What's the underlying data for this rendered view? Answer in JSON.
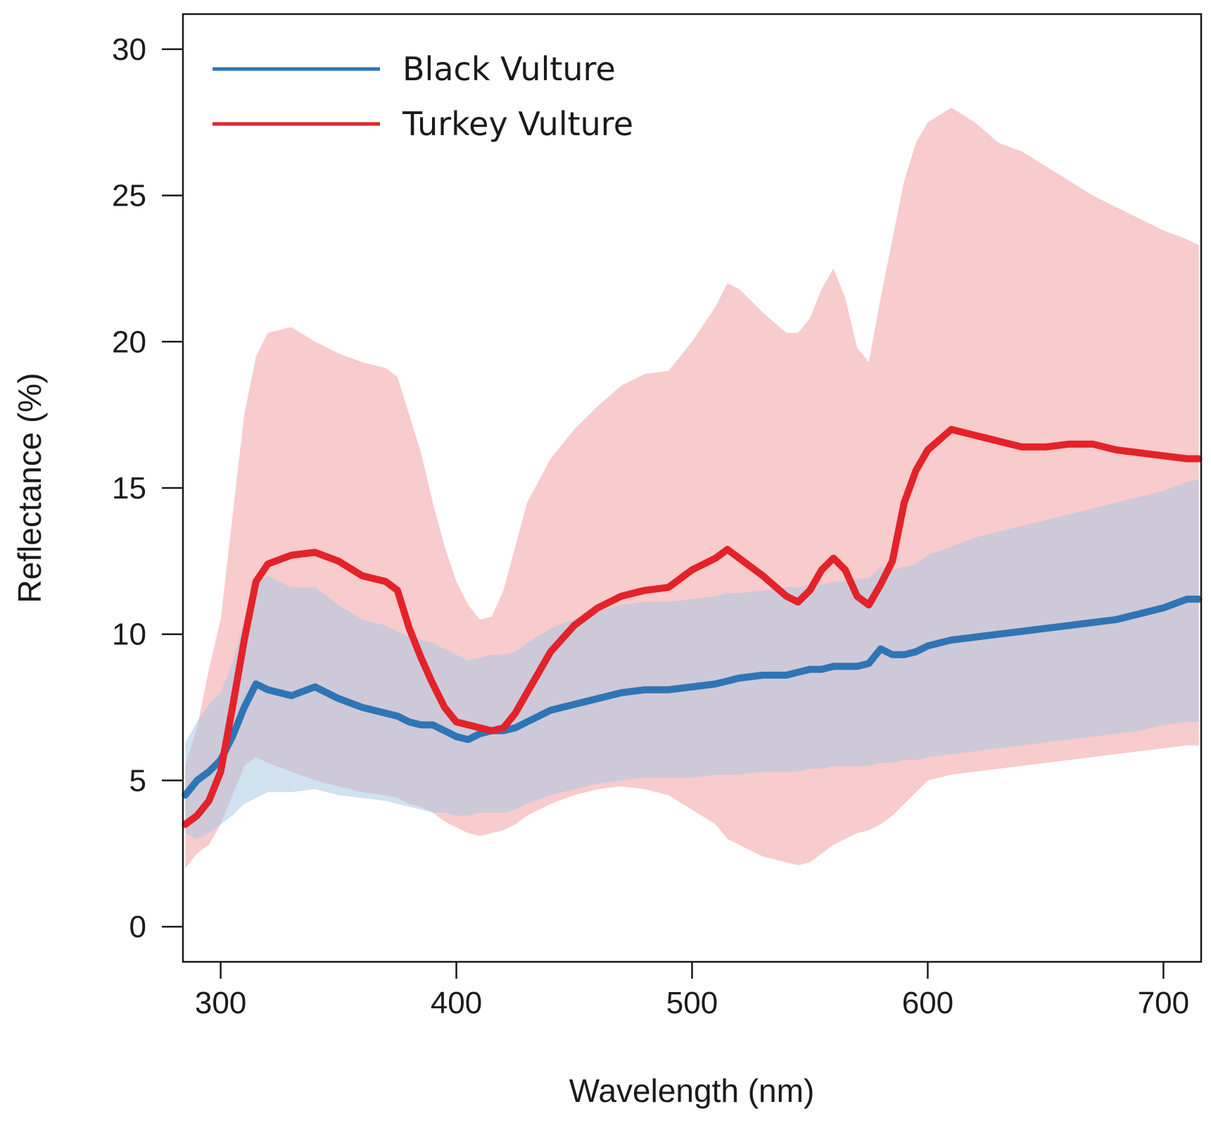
{
  "chart_data": {
    "type": "line",
    "title": "",
    "xlabel": "Wavelength (nm)",
    "ylabel": "Reflectance (%)",
    "xlim": [
      284,
      716
    ],
    "ylim": [
      -1.2,
      31.2
    ],
    "xticks": [
      300,
      400,
      500,
      600,
      700
    ],
    "yticks": [
      0,
      5,
      10,
      15,
      20,
      25,
      30
    ],
    "grid": false,
    "legend_position": "top-left",
    "x": [
      285,
      290,
      295,
      300,
      305,
      310,
      315,
      320,
      330,
      340,
      350,
      360,
      370,
      375,
      380,
      385,
      390,
      395,
      400,
      405,
      410,
      415,
      420,
      425,
      430,
      440,
      450,
      460,
      470,
      480,
      490,
      500,
      510,
      515,
      520,
      530,
      540,
      545,
      550,
      555,
      560,
      565,
      570,
      575,
      580,
      585,
      590,
      595,
      600,
      610,
      620,
      630,
      640,
      650,
      660,
      670,
      680,
      690,
      700,
      710,
      715
    ],
    "series": [
      {
        "name": "Black Vulture",
        "color": "#2e75b6",
        "band_color": "#a9c8e2",
        "values": [
          4.5,
          5.0,
          5.3,
          5.7,
          6.5,
          7.5,
          8.3,
          8.1,
          7.9,
          8.2,
          7.8,
          7.5,
          7.3,
          7.2,
          7.0,
          6.9,
          6.9,
          6.7,
          6.5,
          6.4,
          6.6,
          6.7,
          6.7,
          6.8,
          7.0,
          7.4,
          7.6,
          7.8,
          8.0,
          8.1,
          8.1,
          8.2,
          8.3,
          8.4,
          8.5,
          8.6,
          8.6,
          8.7,
          8.8,
          8.8,
          8.9,
          8.9,
          8.9,
          9.0,
          9.5,
          9.3,
          9.3,
          9.4,
          9.6,
          9.8,
          9.9,
          10.0,
          10.1,
          10.2,
          10.3,
          10.4,
          10.5,
          10.7,
          10.9,
          11.2,
          11.2
        ],
        "band_lower": [
          3.2,
          3.0,
          3.2,
          3.5,
          3.8,
          4.2,
          4.4,
          4.6,
          4.6,
          4.7,
          4.5,
          4.4,
          4.3,
          4.2,
          4.1,
          4.0,
          3.9,
          3.9,
          3.8,
          3.8,
          3.9,
          3.9,
          3.9,
          4.0,
          4.2,
          4.5,
          4.7,
          4.9,
          5.0,
          5.1,
          5.1,
          5.1,
          5.2,
          5.2,
          5.2,
          5.3,
          5.3,
          5.3,
          5.4,
          5.4,
          5.5,
          5.5,
          5.5,
          5.5,
          5.6,
          5.6,
          5.7,
          5.7,
          5.8,
          5.9,
          6.0,
          6.1,
          6.2,
          6.3,
          6.4,
          6.5,
          6.6,
          6.7,
          6.9,
          7.0,
          7.0
        ],
        "band_upper": [
          6.3,
          7.0,
          7.6,
          8.0,
          9.0,
          10.5,
          11.8,
          12.0,
          11.6,
          11.6,
          11.0,
          10.5,
          10.3,
          10.1,
          9.9,
          9.8,
          9.7,
          9.5,
          9.3,
          9.1,
          9.2,
          9.3,
          9.3,
          9.4,
          9.7,
          10.2,
          10.5,
          10.8,
          11.0,
          11.1,
          11.1,
          11.2,
          11.3,
          11.4,
          11.4,
          11.5,
          11.6,
          11.6,
          11.7,
          11.7,
          11.8,
          11.8,
          11.9,
          11.9,
          12.3,
          12.2,
          12.3,
          12.4,
          12.7,
          13.0,
          13.3,
          13.5,
          13.7,
          13.9,
          14.1,
          14.3,
          14.5,
          14.7,
          14.9,
          15.2,
          15.3
        ]
      },
      {
        "name": "Turkey Vulture",
        "color": "#e3222a",
        "band_color": "#f5b7b9",
        "values": [
          3.5,
          3.8,
          4.3,
          5.3,
          7.5,
          9.8,
          11.8,
          12.4,
          12.7,
          12.8,
          12.5,
          12.0,
          11.8,
          11.5,
          10.2,
          9.2,
          8.3,
          7.5,
          7.0,
          6.9,
          6.8,
          6.7,
          6.8,
          7.3,
          8.0,
          9.4,
          10.3,
          10.9,
          11.3,
          11.5,
          11.6,
          12.2,
          12.6,
          12.9,
          12.6,
          12.0,
          11.3,
          11.1,
          11.5,
          12.2,
          12.6,
          12.2,
          11.3,
          11.0,
          11.7,
          12.5,
          14.5,
          15.6,
          16.3,
          17.0,
          16.8,
          16.6,
          16.4,
          16.4,
          16.5,
          16.5,
          16.3,
          16.2,
          16.1,
          16.0,
          16.0
        ],
        "band_lower": [
          2.0,
          2.5,
          2.8,
          3.5,
          4.5,
          5.5,
          5.8,
          5.6,
          5.3,
          5.0,
          4.8,
          4.6,
          4.5,
          4.4,
          4.2,
          4.1,
          3.9,
          3.6,
          3.4,
          3.2,
          3.1,
          3.2,
          3.3,
          3.5,
          3.8,
          4.2,
          4.5,
          4.7,
          4.8,
          4.7,
          4.5,
          4.0,
          3.5,
          3.0,
          2.8,
          2.4,
          2.2,
          2.1,
          2.2,
          2.5,
          2.8,
          3.0,
          3.2,
          3.3,
          3.5,
          3.8,
          4.2,
          4.6,
          5.0,
          5.2,
          5.3,
          5.4,
          5.5,
          5.6,
          5.7,
          5.8,
          5.9,
          6.0,
          6.1,
          6.2,
          6.2
        ],
        "band_upper": [
          5.5,
          6.8,
          8.8,
          10.5,
          14.0,
          17.5,
          19.5,
          20.3,
          20.5,
          20.0,
          19.6,
          19.3,
          19.1,
          18.8,
          17.5,
          16.2,
          14.5,
          13.0,
          11.8,
          11.0,
          10.5,
          10.6,
          11.5,
          13.0,
          14.5,
          16.0,
          17.0,
          17.8,
          18.5,
          18.9,
          19.0,
          20.0,
          21.2,
          22.0,
          21.8,
          21.0,
          20.3,
          20.3,
          20.8,
          21.8,
          22.5,
          21.5,
          19.8,
          19.3,
          21.5,
          23.5,
          25.5,
          26.8,
          27.5,
          28.0,
          27.5,
          26.8,
          26.5,
          26.0,
          25.5,
          25.0,
          24.6,
          24.2,
          23.8,
          23.5,
          23.3
        ]
      }
    ]
  }
}
